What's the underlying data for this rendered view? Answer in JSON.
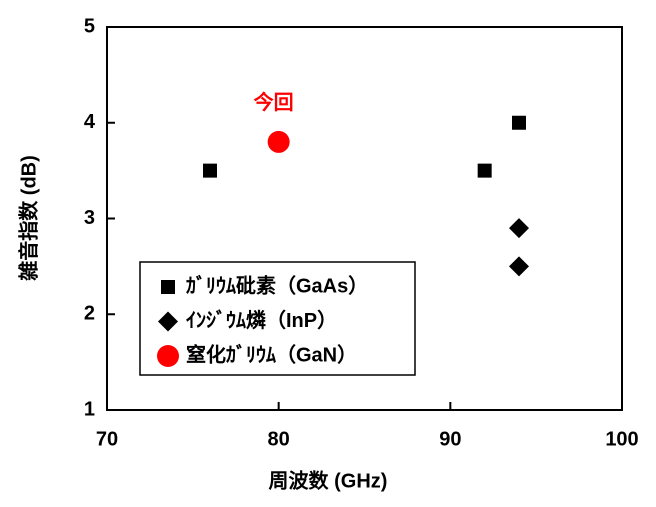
{
  "chart_data": {
    "type": "scatter",
    "xlabel": "周波数 (GHz)",
    "ylabel": "雑音指数 (dB)",
    "xlim": [
      70,
      100
    ],
    "xticks": [
      70,
      80,
      90,
      100
    ],
    "ylim": [
      1,
      5
    ],
    "yticks": [
      1,
      2,
      3,
      4,
      5
    ],
    "legend": "lower left",
    "annotation": "今回",
    "annotation_color": "#ff0000",
    "series": [
      {
        "name": "ｶﾞﾘｳﾑ砒素（GaAs）",
        "color": "#000000",
        "marker": "square",
        "x": [
          76,
          92,
          94
        ],
        "y": [
          3.5,
          3.5,
          4.0
        ]
      },
      {
        "name": "ｲﾝｼﾞｳﾑ燐（InP）",
        "color": "#000000",
        "marker": "diamond",
        "x": [
          94,
          94
        ],
        "y": [
          2.9,
          2.5
        ]
      },
      {
        "name": "窒化ｶﾞﾘｳﾑ（GaN）",
        "color": "#ff0000",
        "marker": "circle",
        "x": [
          80
        ],
        "y": [
          3.8
        ]
      }
    ]
  }
}
